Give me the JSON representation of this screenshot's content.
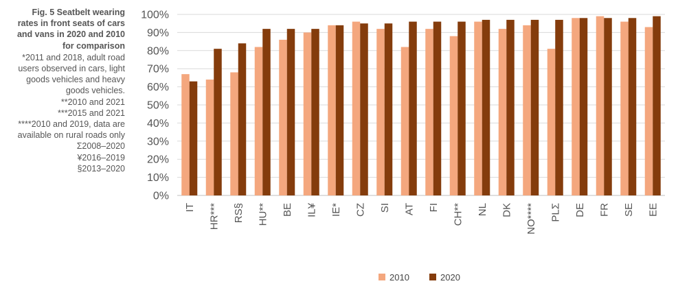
{
  "panel": {
    "title": "Fig. 5 Seatbelt wearing rates in front seats of cars and vans in 2020 and 2010 for comparison",
    "title_lines": [
      "Fig. 5 Seatbelt wearing",
      "rates in front seats of cars",
      "and vans in 2020 and 2010",
      "for comparison"
    ],
    "note_lines": [
      "*2011 and 2018, adult road",
      "users observed in cars, light",
      "goods vehicles and heavy",
      "goods vehicles.",
      "**2010 and 2021",
      "***2015 and 2021",
      "****2010 and 2019, data are",
      "available on rural roads only",
      "Σ2008–2020",
      "¥2016–2019",
      "§2013–2020"
    ]
  },
  "chart_data": {
    "type": "bar",
    "categories": [
      "IT",
      "HR***",
      "RS§",
      "HU**",
      "BE",
      "IL¥",
      "IE*",
      "CZ",
      "SI",
      "AT",
      "FI",
      "CH**",
      "NL",
      "DK",
      "NO****",
      "PLΣ",
      "DE",
      "FR",
      "SE",
      "EE"
    ],
    "series": [
      {
        "name": "2010",
        "color": "#f4a77e",
        "values": [
          67,
          64,
          68,
          82,
          86,
          90,
          94,
          96,
          92,
          82,
          92,
          88,
          96,
          92,
          94,
          81,
          98,
          99,
          96,
          93
        ]
      },
      {
        "name": "2020",
        "color": "#843c0c",
        "values": [
          63,
          81,
          84,
          92,
          92,
          92,
          94,
          95,
          95,
          96,
          96,
          96,
          97,
          97,
          97,
          97,
          98,
          98,
          98,
          99
        ]
      }
    ],
    "ylim": [
      0,
      100
    ],
    "yticks": [
      "0%",
      "10%",
      "20%",
      "30%",
      "40%",
      "50%",
      "60%",
      "70%",
      "80%",
      "90%",
      "100%"
    ],
    "grid": true,
    "legend_position": "bottom-center"
  }
}
